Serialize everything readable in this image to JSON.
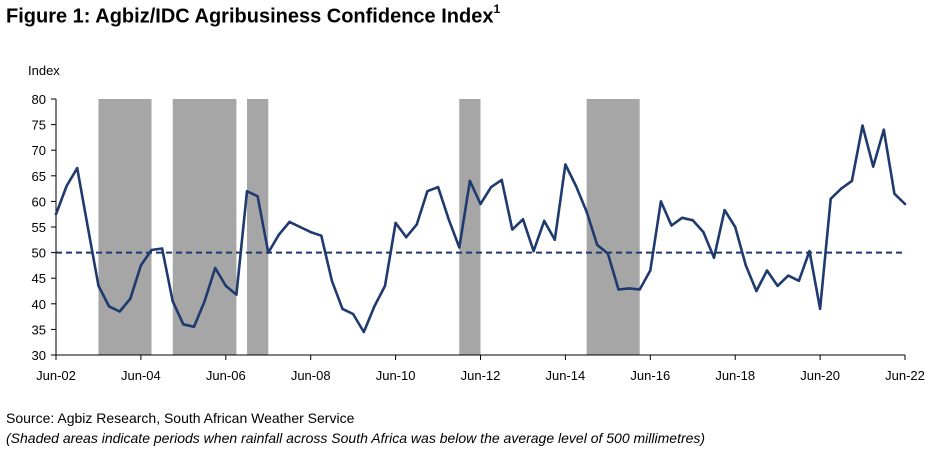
{
  "figure": {
    "title": "Figure 1: Agbiz/IDC Agribusiness Confidence Index",
    "title_superscript": "1",
    "source": "Source: Agbiz Research, South African Weather Service",
    "note": "(Shaded areas indicate periods when rainfall across South Africa was below the average level of 500 millimetres)"
  },
  "chart_data": {
    "type": "line",
    "title": "Figure 1: Agbiz/IDC Agribusiness Confidence Index",
    "ylabel": "Index",
    "xlabel": "",
    "ylim": [
      30,
      80
    ],
    "yticks": [
      30,
      35,
      40,
      45,
      50,
      55,
      60,
      65,
      70,
      75,
      80
    ],
    "xlim": [
      "2002-06",
      "2022-06"
    ],
    "xticks": [
      {
        "date": "2002-06",
        "label": "Jun-02"
      },
      {
        "date": "2004-06",
        "label": "Jun-04"
      },
      {
        "date": "2006-06",
        "label": "Jun-06"
      },
      {
        "date": "2008-06",
        "label": "Jun-08"
      },
      {
        "date": "2010-06",
        "label": "Jun-10"
      },
      {
        "date": "2012-06",
        "label": "Jun-12"
      },
      {
        "date": "2014-06",
        "label": "Jun-14"
      },
      {
        "date": "2016-06",
        "label": "Jun-16"
      },
      {
        "date": "2018-06",
        "label": "Jun-18"
      },
      {
        "date": "2020-06",
        "label": "Jun-20"
      },
      {
        "date": "2022-06",
        "label": "Jun-22"
      }
    ],
    "grid": false,
    "colors": {
      "line": "#1f3a6e",
      "shade": "#a6a6a6",
      "reference": "#1f3a6e"
    },
    "reference_line": {
      "y": 50,
      "style": "dashed"
    },
    "shaded_periods": [
      {
        "start": "2003-06",
        "end": "2004-09"
      },
      {
        "start": "2005-03",
        "end": "2006-09"
      },
      {
        "start": "2006-12",
        "end": "2007-06"
      },
      {
        "start": "2011-12",
        "end": "2012-06"
      },
      {
        "start": "2014-12",
        "end": "2016-03"
      }
    ],
    "series": [
      {
        "points": [
          {
            "x": "2002-06",
            "y": 57.5
          },
          {
            "x": "2002-09",
            "y": 63
          },
          {
            "x": "2002-12",
            "y": 66.5
          },
          {
            "x": "2003-03",
            "y": 55
          },
          {
            "x": "2003-06",
            "y": 43.5
          },
          {
            "x": "2003-09",
            "y": 39.5
          },
          {
            "x": "2003-12",
            "y": 38.5
          },
          {
            "x": "2004-03",
            "y": 41
          },
          {
            "x": "2004-06",
            "y": 47.5
          },
          {
            "x": "2004-09",
            "y": 50.5
          },
          {
            "x": "2004-12",
            "y": 50.8
          },
          {
            "x": "2005-03",
            "y": 40.5
          },
          {
            "x": "2005-06",
            "y": 36
          },
          {
            "x": "2005-09",
            "y": 35.5
          },
          {
            "x": "2005-12",
            "y": 40.5
          },
          {
            "x": "2006-03",
            "y": 47
          },
          {
            "x": "2006-06",
            "y": 43.5
          },
          {
            "x": "2006-09",
            "y": 41.8
          },
          {
            "x": "2006-12",
            "y": 62
          },
          {
            "x": "2007-03",
            "y": 61
          },
          {
            "x": "2007-06",
            "y": 50
          },
          {
            "x": "2007-09",
            "y": 53.5
          },
          {
            "x": "2007-12",
            "y": 56
          },
          {
            "x": "2008-03",
            "y": 55
          },
          {
            "x": "2008-06",
            "y": 54
          },
          {
            "x": "2008-09",
            "y": 53.3
          },
          {
            "x": "2008-12",
            "y": 44.5
          },
          {
            "x": "2009-03",
            "y": 39
          },
          {
            "x": "2009-06",
            "y": 38
          },
          {
            "x": "2009-09",
            "y": 34.5
          },
          {
            "x": "2009-12",
            "y": 39.5
          },
          {
            "x": "2010-03",
            "y": 43.5
          },
          {
            "x": "2010-06",
            "y": 55.8
          },
          {
            "x": "2010-09",
            "y": 53
          },
          {
            "x": "2010-12",
            "y": 55.5
          },
          {
            "x": "2011-03",
            "y": 62
          },
          {
            "x": "2011-06",
            "y": 62.8
          },
          {
            "x": "2011-09",
            "y": 56.5
          },
          {
            "x": "2011-12",
            "y": 51
          },
          {
            "x": "2012-03",
            "y": 64
          },
          {
            "x": "2012-06",
            "y": 59.5
          },
          {
            "x": "2012-09",
            "y": 62.8
          },
          {
            "x": "2012-12",
            "y": 64.2
          },
          {
            "x": "2013-03",
            "y": 54.5
          },
          {
            "x": "2013-06",
            "y": 56.5
          },
          {
            "x": "2013-09",
            "y": 50.3
          },
          {
            "x": "2013-12",
            "y": 56.2
          },
          {
            "x": "2014-03",
            "y": 52.5
          },
          {
            "x": "2014-06",
            "y": 67.2
          },
          {
            "x": "2014-09",
            "y": 63
          },
          {
            "x": "2014-12",
            "y": 58
          },
          {
            "x": "2015-03",
            "y": 51.5
          },
          {
            "x": "2015-06",
            "y": 49.8
          },
          {
            "x": "2015-09",
            "y": 42.8
          },
          {
            "x": "2015-12",
            "y": 43
          },
          {
            "x": "2016-03",
            "y": 42.8
          },
          {
            "x": "2016-06",
            "y": 46.5
          },
          {
            "x": "2016-09",
            "y": 60
          },
          {
            "x": "2016-12",
            "y": 55.3
          },
          {
            "x": "2017-03",
            "y": 56.8
          },
          {
            "x": "2017-06",
            "y": 56.3
          },
          {
            "x": "2017-09",
            "y": 54
          },
          {
            "x": "2017-12",
            "y": 49
          },
          {
            "x": "2018-03",
            "y": 58.3
          },
          {
            "x": "2018-06",
            "y": 55
          },
          {
            "x": "2018-09",
            "y": 47.5
          },
          {
            "x": "2018-12",
            "y": 42.5
          },
          {
            "x": "2019-03",
            "y": 46.5
          },
          {
            "x": "2019-06",
            "y": 43.5
          },
          {
            "x": "2019-09",
            "y": 45.5
          },
          {
            "x": "2019-12",
            "y": 44.5
          },
          {
            "x": "2020-03",
            "y": 50.3
          },
          {
            "x": "2020-06",
            "y": 39
          },
          {
            "x": "2020-09",
            "y": 60.5
          },
          {
            "x": "2020-12",
            "y": 62.5
          },
          {
            "x": "2021-03",
            "y": 64
          },
          {
            "x": "2021-06",
            "y": 74.8
          },
          {
            "x": "2021-09",
            "y": 66.8
          },
          {
            "x": "2021-12",
            "y": 74
          },
          {
            "x": "2022-03",
            "y": 61.5
          },
          {
            "x": "2022-06",
            "y": 59.5
          }
        ]
      }
    ]
  }
}
